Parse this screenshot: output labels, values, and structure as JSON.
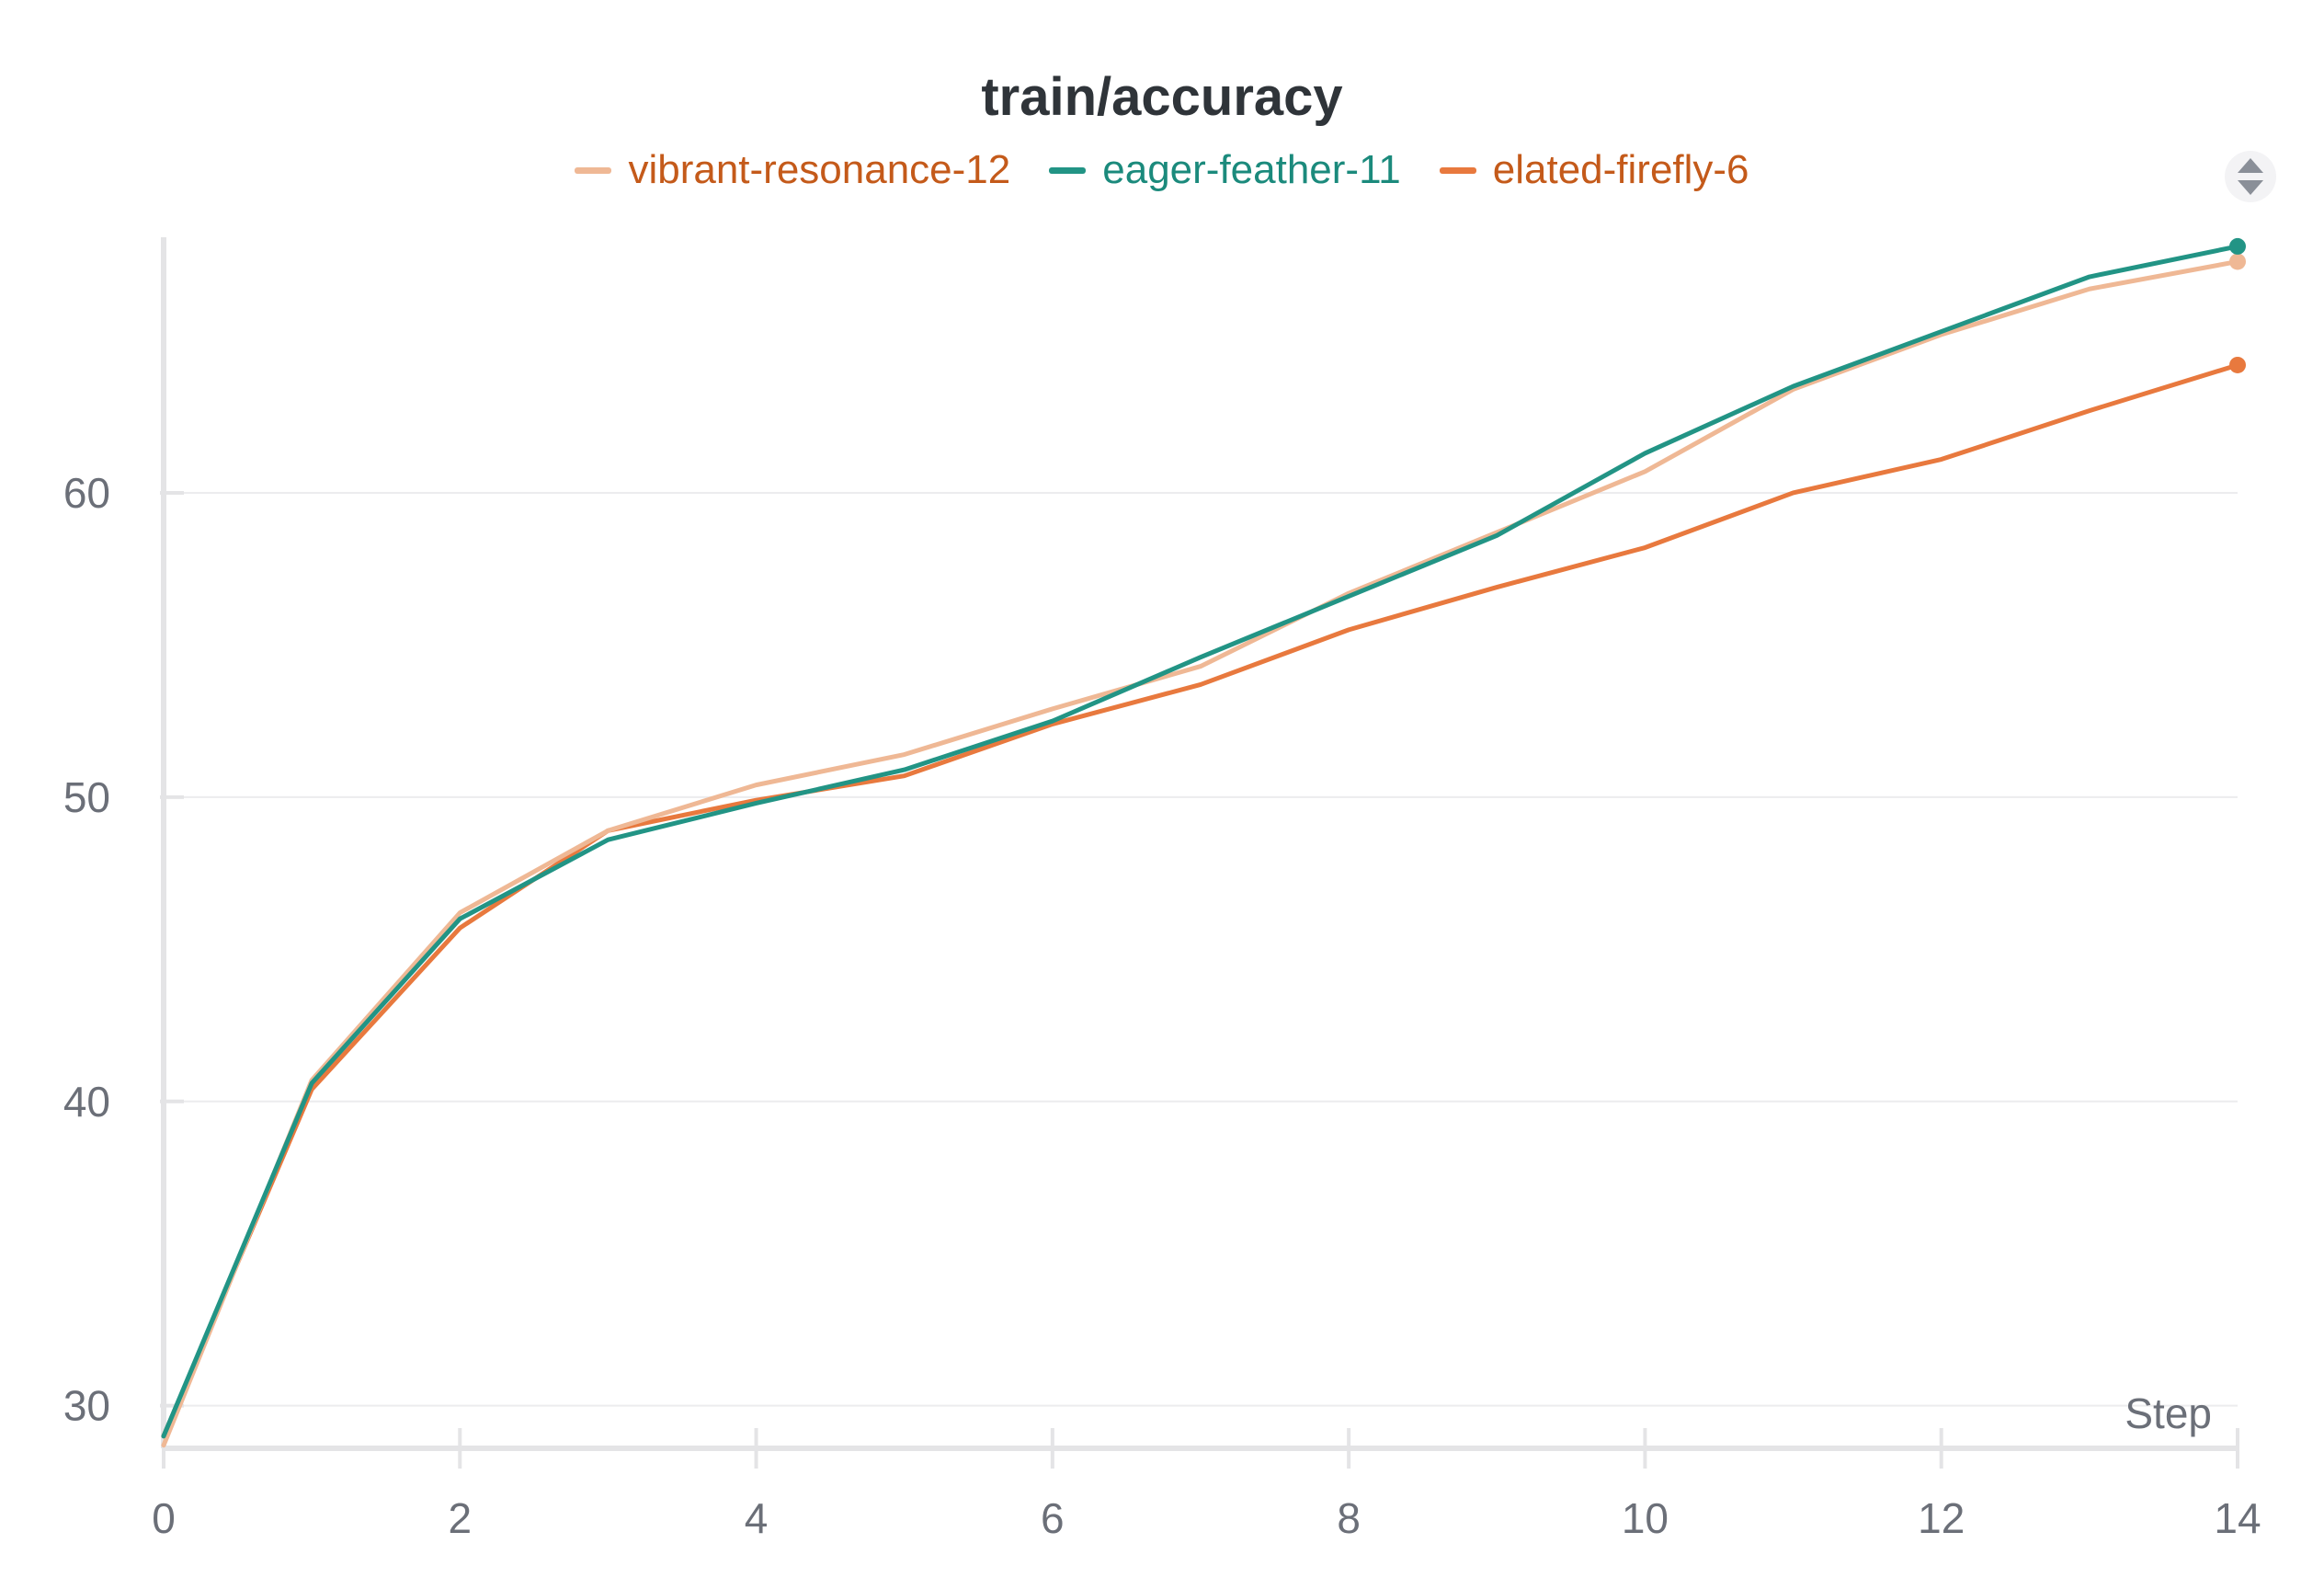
{
  "chart_data": {
    "type": "line",
    "title": "train/accuracy",
    "xlabel": "Step",
    "ylabel": "",
    "xlim": [
      0,
      14
    ],
    "ylim": [
      28.6,
      68.4
    ],
    "x_ticks": [
      0,
      2,
      4,
      6,
      8,
      10,
      12,
      14
    ],
    "y_ticks": [
      30,
      40,
      50,
      60
    ],
    "grid": "horizontal",
    "legend_position": "top-center",
    "x": [
      0,
      1,
      2,
      3,
      4,
      5,
      6,
      7,
      8,
      9,
      10,
      11,
      12,
      13,
      14
    ],
    "series": [
      {
        "name": "vibrant-resonance-12",
        "color": "#efb895",
        "label_color": "#c45a1a",
        "values": [
          28.7,
          40.7,
          46.2,
          48.9,
          50.4,
          51.4,
          52.9,
          54.3,
          56.7,
          58.7,
          60.7,
          63.4,
          65.2,
          66.7,
          67.6
        ]
      },
      {
        "name": "eager-feather-11",
        "color": "#229485",
        "label_color": "#1b8a7c",
        "values": [
          29.0,
          40.6,
          46.0,
          48.6,
          49.8,
          50.9,
          52.5,
          54.6,
          56.6,
          58.6,
          61.3,
          63.5,
          65.3,
          67.1,
          68.1
        ]
      },
      {
        "name": "elated-firefly-6",
        "color": "#e8793e",
        "label_color": "#c45a1a",
        "values": [
          29.0,
          40.4,
          45.7,
          48.9,
          49.9,
          50.7,
          52.4,
          53.7,
          55.5,
          56.9,
          58.2,
          60.0,
          61.1,
          62.7,
          64.2
        ]
      }
    ]
  }
}
